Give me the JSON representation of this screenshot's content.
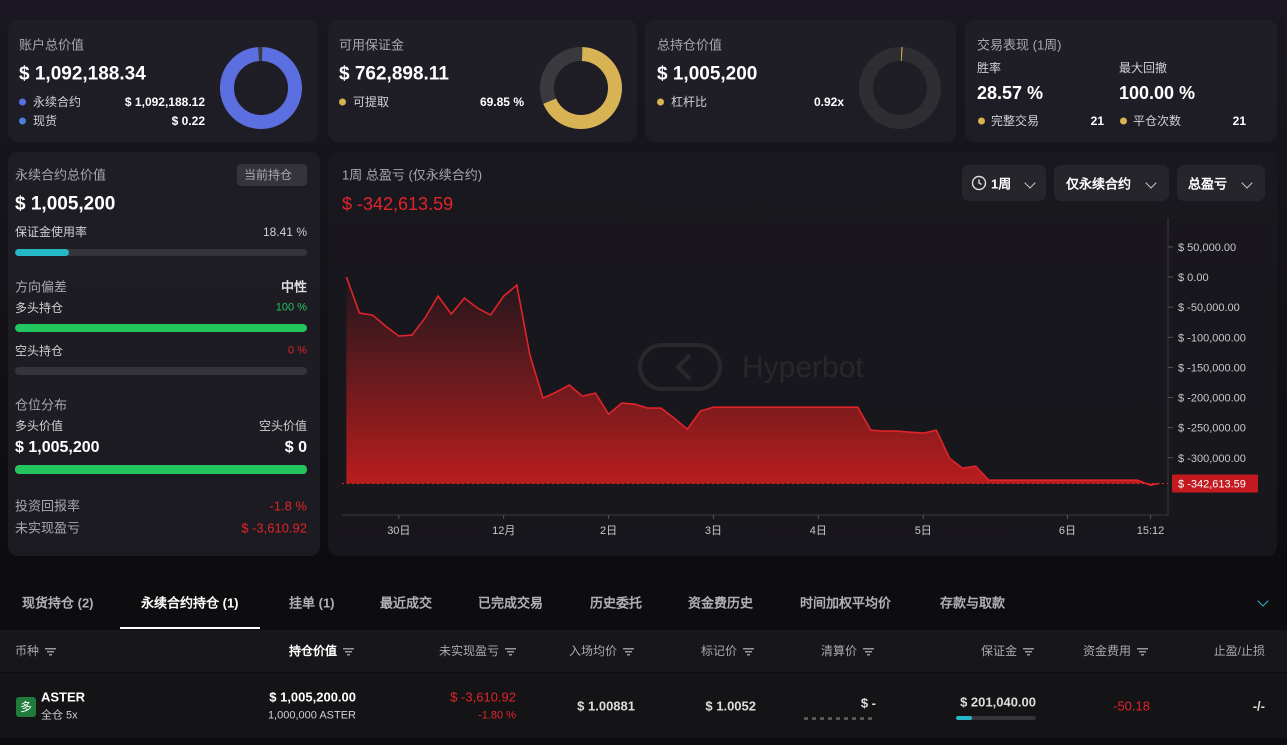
{
  "cards": [
    {
      "title": "账户总价值",
      "value": "$ 1,092,188.34",
      "rows": [
        {
          "label": "永续合约",
          "value": "$ 1,092,188.12"
        },
        {
          "label": "现货",
          "value": "$ 0.22"
        }
      ],
      "ring": 100,
      "ring_color": "#5b6fe0"
    },
    {
      "title": "可用保证金",
      "value": "$ 762,898.11",
      "rows": [
        {
          "label": "可提取",
          "value": "69.85 %"
        }
      ],
      "ring": 69.85,
      "ring_color": "#d8b354"
    },
    {
      "title": "总持仓价值",
      "value": "$ 1,005,200",
      "rows": [
        {
          "label": "杠杆比",
          "value": "0.92x"
        }
      ],
      "ring": 2,
      "ring_color": "#d8b354"
    }
  ],
  "performance": {
    "title": "交易表现 (1周)",
    "stats": [
      {
        "label": "胜率",
        "value": "28.57 %"
      },
      {
        "label": "最大回撤",
        "value": "100.00 %"
      }
    ],
    "rows": [
      {
        "label": "完整交易",
        "value": "21"
      },
      {
        "label": "平仓次数",
        "value": "21"
      }
    ]
  },
  "perp": {
    "title": "永续合约总价值",
    "badge": "当前持仓",
    "value": "$ 1,005,200",
    "margin": {
      "label": "保证金使用率",
      "value": 18.41,
      "value_label": "18.41 %"
    },
    "bias": {
      "label": "方向偏差",
      "value": "中性"
    },
    "long": {
      "label": "多头持仓",
      "value": 100,
      "value_label": "100 %"
    },
    "short": {
      "label": "空头持仓",
      "value": 0,
      "value_label": "0 %"
    },
    "distribution": {
      "label": "仓位分布",
      "long_label": "多头价值",
      "short_label": "空头价值",
      "long_value": "$ 1,005,200",
      "short_value": "$ 0",
      "long_share": 100
    },
    "roi": {
      "label": "投资回报率",
      "value": "-1.8 %"
    },
    "upnl": {
      "label": "未实现盈亏",
      "value": "$ -3,610.92"
    }
  },
  "chart_data": {
    "type": "line",
    "title": "1周 总盈亏 (仅永续合约)",
    "value": "$ -342,613.59",
    "controls": [
      "1周",
      "仅永续合约",
      "总盈亏"
    ],
    "watermark": "Hyperbot",
    "color": "#e0242a",
    "x": [
      0,
      3,
      6,
      9,
      12,
      15,
      18,
      21,
      24,
      27,
      30,
      33,
      36,
      39,
      42,
      45,
      48,
      51,
      54,
      57,
      60,
      63,
      66,
      69,
      72,
      75,
      78,
      81,
      84,
      117,
      120,
      123,
      126,
      129,
      132,
      135,
      138,
      141,
      144,
      147,
      181,
      184,
      186
    ],
    "values": [
      0,
      -59800,
      -63100,
      -81400,
      -98000,
      -96300,
      -68100,
      -31600,
      -61500,
      -34900,
      -51500,
      -63100,
      -31600,
      -13300,
      -129600,
      -201000,
      -191000,
      -179400,
      -197700,
      -192700,
      -227600,
      -209300,
      -211000,
      -217600,
      -217600,
      -234200,
      -252500,
      -222600,
      -216000,
      -216000,
      -254200,
      -255800,
      -255800,
      -257500,
      -259100,
      -254200,
      -300700,
      -317300,
      -314000,
      -337200,
      -337200,
      -345500,
      -342613.59
    ],
    "xlim": [
      -1,
      188
    ],
    "xticks": [
      {
        "value": 12,
        "label": "30日"
      },
      {
        "value": 36,
        "label": "12月"
      },
      {
        "value": 60,
        "label": "2日"
      },
      {
        "value": 84,
        "label": "3日"
      },
      {
        "value": 108,
        "label": "4日"
      },
      {
        "value": 132,
        "label": "5日"
      },
      {
        "value": 165,
        "label": "6日"
      },
      {
        "value": 184,
        "label": "15:12"
      }
    ],
    "ylim": [
      -395000,
      98000
    ],
    "yticks": [
      {
        "value": 50000,
        "label": "$ 50,000.00"
      },
      {
        "value": 0,
        "label": "$ 0.00"
      },
      {
        "value": -50000,
        "label": "$ -50,000.00"
      },
      {
        "value": -100000,
        "label": "$ -100,000.00"
      },
      {
        "value": -150000,
        "label": "$ -150,000.00"
      },
      {
        "value": -200000,
        "label": "$ -200,000.00"
      },
      {
        "value": -250000,
        "label": "$ -250,000.00"
      },
      {
        "value": -300000,
        "label": "$ -300,000.00"
      }
    ],
    "last_marker": {
      "value": -342613.59,
      "label": "$ -342,613.59"
    }
  },
  "tabs": {
    "items": [
      "现货持仓 (2)",
      "永续合约持仓 (1)",
      "挂单 (1)",
      "最近成交",
      "已完成交易",
      "历史委托",
      "资金费历史",
      "时间加权平均价",
      "存款与取款"
    ],
    "active": 1
  },
  "table": {
    "headers": [
      "币种",
      "持仓价值",
      "未实现盈亏",
      "入场均价",
      "标记价",
      "清算价",
      "保证金",
      "资金费用",
      "止盈/止损"
    ],
    "rows": [
      {
        "side": "多",
        "symbol": "ASTER",
        "mode": "全仓 5x",
        "value": "$ 1,005,200.00",
        "size": "1,000,000 ASTER",
        "pnl": "$ -3,610.92",
        "pnl_pct": "-1.80 %",
        "entry": "$ 1.00881",
        "mark": "$ 1.0052",
        "liq": "$ -",
        "margin": "$ 201,040.00",
        "margin_bar": 20,
        "funding": "-50.18",
        "tpsl": "-/-"
      }
    ]
  }
}
